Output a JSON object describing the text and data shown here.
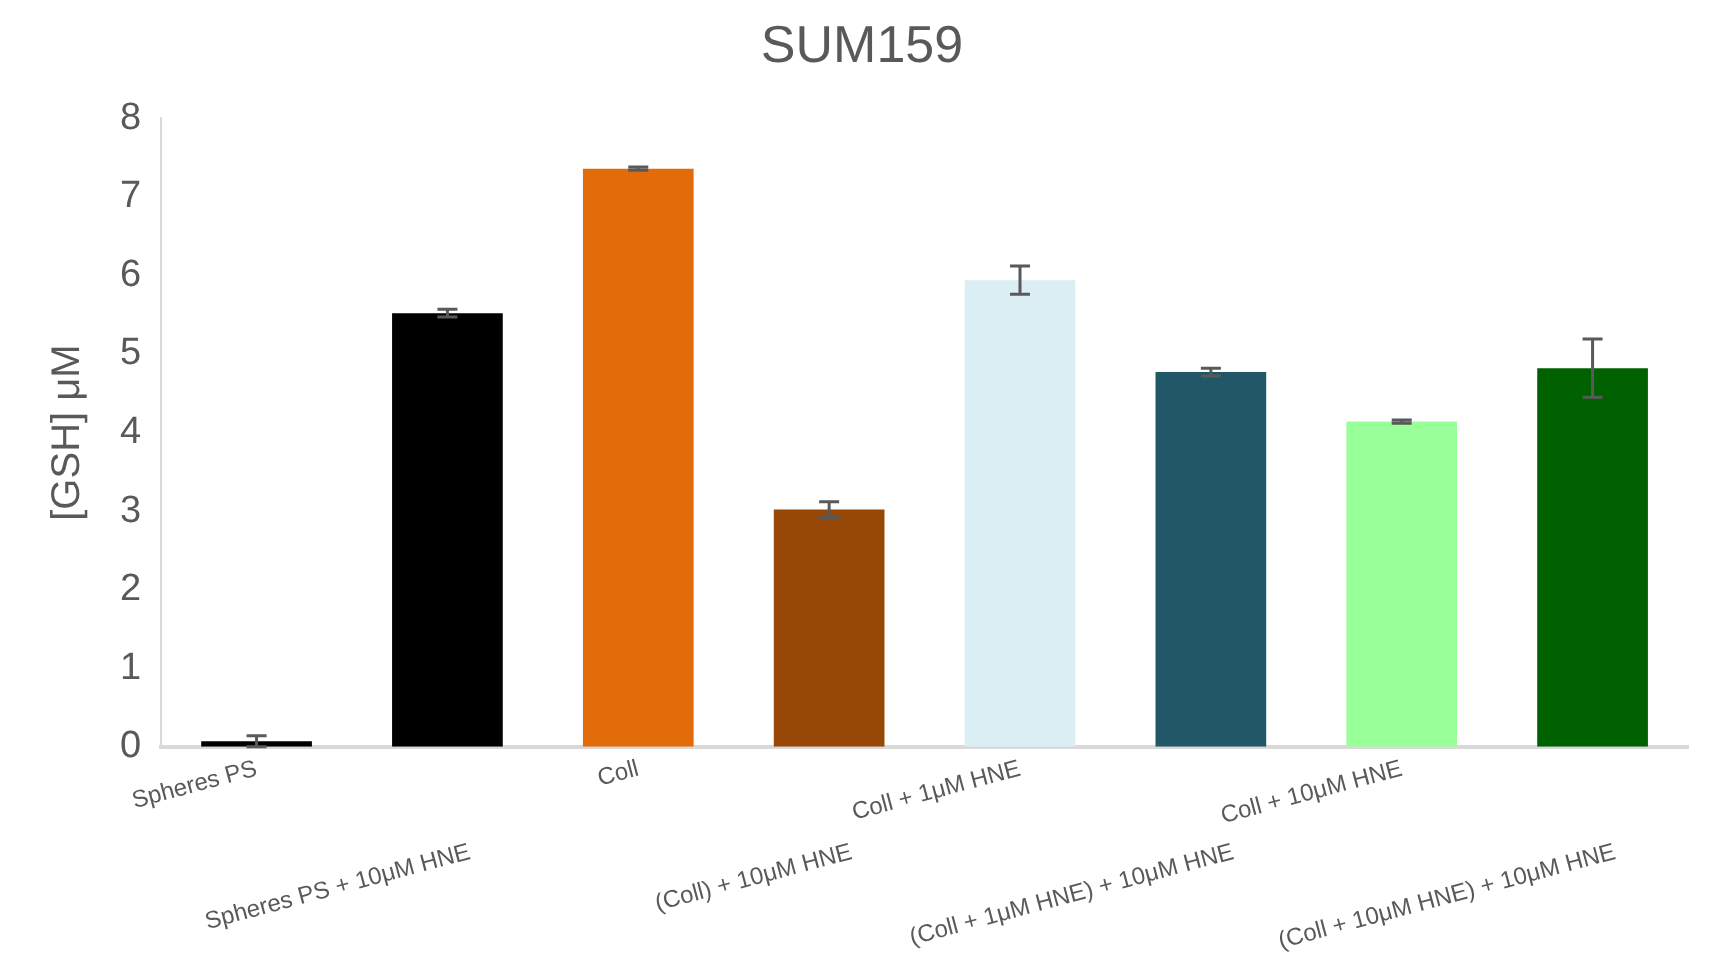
{
  "chart_data": {
    "type": "bar",
    "title": "SUM159",
    "ylabel": "[GSH] μM",
    "categories": [
      "Spheres PS",
      "Spheres PS + 10μM HNE",
      "Coll",
      "(Coll) + 10μM HNE",
      "Coll + 1μM HNE",
      "(Coll + 1μM HNE) + 10μM HNE",
      "Coll + 10μM HNE",
      "(Coll + 10μM HNE) + 10μM HNE"
    ],
    "values": [
      0.07,
      5.52,
      7.36,
      3.02,
      5.94,
      4.77,
      4.14,
      4.82
    ],
    "errors": [
      0.07,
      0.05,
      0.02,
      0.1,
      0.18,
      0.05,
      0.02,
      0.37
    ],
    "colors": [
      "#000000",
      "#000000",
      "#e36c0a",
      "#974806",
      "#dbeef4",
      "#215868",
      "#99ff99",
      "#006100"
    ],
    "ylim": [
      0,
      8
    ],
    "yticks": [
      0,
      1,
      2,
      3,
      4,
      5,
      6,
      7,
      8
    ],
    "grid": false
  }
}
